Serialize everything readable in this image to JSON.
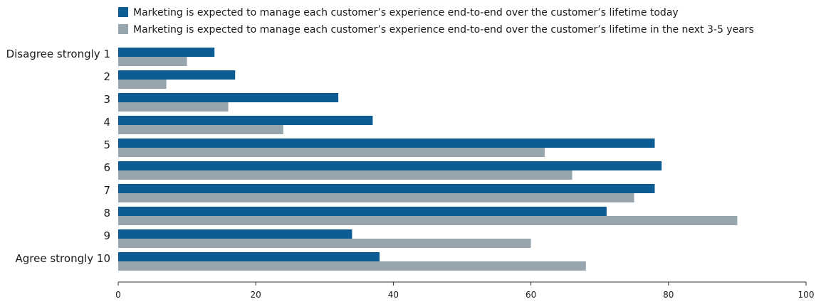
{
  "chart_data": {
    "type": "bar",
    "orientation": "horizontal",
    "categories": [
      "Disagree strongly 1",
      "2",
      "3",
      "4",
      "5",
      "6",
      "7",
      "8",
      "9",
      "Agree strongly 10"
    ],
    "series": [
      {
        "name": "Marketing is expected to manage each customer’s experience end-to-end over the customer’s lifetime today",
        "color": "#0d5c94",
        "values": [
          14,
          17,
          32,
          37,
          78,
          79,
          78,
          71,
          34,
          38
        ]
      },
      {
        "name": "Marketing is expected to manage each customer’s experience end-to-end over the customer’s lifetime in the next 3-5 years",
        "color": "#97a5ae",
        "values": [
          10,
          7,
          16,
          24,
          62,
          66,
          75,
          90,
          60,
          68
        ]
      }
    ],
    "xlim": [
      0,
      100
    ],
    "xticks": [
      0,
      20,
      40,
      60,
      80,
      100
    ],
    "grid": false,
    "legend_position": "top"
  }
}
